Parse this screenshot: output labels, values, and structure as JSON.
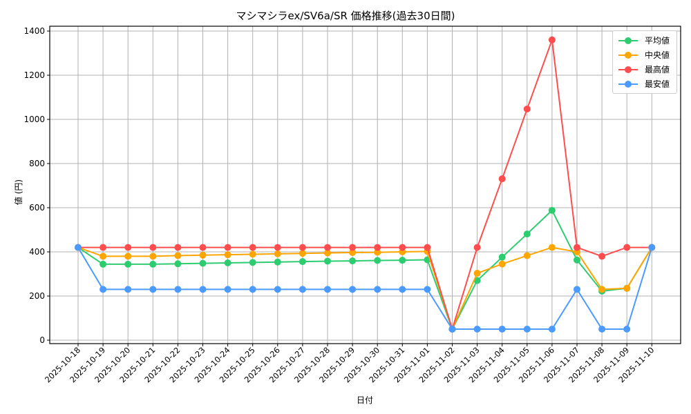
{
  "title": "マシマシラex/SV6a/SR 価格推移(過去30日間)",
  "chart_data": {
    "type": "line",
    "title": "マシマシラex/SV6a/SR 価格推移(過去30日間)",
    "xlabel": "日付",
    "ylabel": "値 (円)",
    "ylim": [
      0,
      1400
    ],
    "yticks": [
      0,
      200,
      400,
      600,
      800,
      1000,
      1200,
      1400
    ],
    "grid": true,
    "legend_position": "upper right",
    "categories": [
      "2025-10-18",
      "2025-10-19",
      "2025-10-20",
      "2025-10-21",
      "2025-10-22",
      "2025-10-23",
      "2025-10-24",
      "2025-10-25",
      "2025-10-26",
      "2025-10-27",
      "2025-10-28",
      "2025-10-29",
      "2025-10-30",
      "2025-10-31",
      "2025-11-01",
      "2025-11-02",
      "2025-11-03",
      "2025-11-04",
      "2025-11-05",
      "2025-11-06",
      "2025-11-07",
      "2025-11-08",
      "2025-11-09",
      "2025-11-10"
    ],
    "series": [
      {
        "name": "平均値",
        "color": "#2ecc71",
        "values": [
          420,
          344,
          344,
          344,
          346,
          348,
          350,
          352,
          354,
          356,
          358,
          359,
          361,
          362,
          364,
          50,
          270,
          376,
          481,
          588,
          363,
          222,
          235,
          420
        ]
      },
      {
        "name": "中央値",
        "color": "#ffa500",
        "values": [
          420,
          380,
          380,
          380,
          383,
          385,
          387,
          389,
          391,
          393,
          395,
          397,
          398,
          400,
          402,
          50,
          303,
          345,
          383,
          420,
          400,
          230,
          235,
          420
        ]
      },
      {
        "name": "最高値",
        "color": "#ff4d4d",
        "values": [
          420,
          420,
          420,
          420,
          420,
          420,
          420,
          420,
          420,
          420,
          420,
          420,
          420,
          420,
          420,
          50,
          420,
          731,
          1047,
          1360,
          420,
          380,
          420,
          420
        ]
      },
      {
        "name": "最安値",
        "color": "#4a9aff",
        "values": [
          420,
          230,
          230,
          230,
          230,
          230,
          230,
          230,
          230,
          230,
          230,
          230,
          230,
          230,
          230,
          50,
          50,
          50,
          50,
          50,
          230,
          50,
          50,
          420
        ]
      }
    ]
  }
}
